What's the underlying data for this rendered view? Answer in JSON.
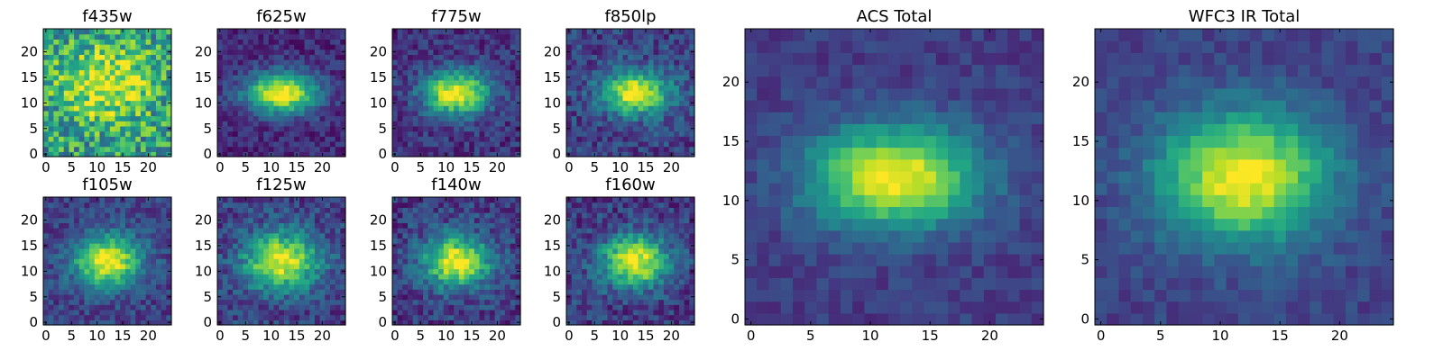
{
  "chart_data": [
    {
      "type": "heatmap",
      "title": "f435w",
      "xticks": [
        0,
        5,
        10,
        15,
        20
      ],
      "yticks": [
        0,
        5,
        10,
        15,
        20
      ],
      "xlim": [
        0,
        25
      ],
      "ylim": [
        0,
        25
      ],
      "grid": false,
      "colormap": "viridis",
      "peak": [
        12,
        14
      ],
      "spread": [
        6,
        5
      ],
      "noise": 0.55,
      "base": 0.55
    },
    {
      "type": "heatmap",
      "title": "f625w",
      "xticks": [
        0,
        5,
        10,
        15,
        20
      ],
      "yticks": [
        0,
        5,
        10,
        15,
        20
      ],
      "xlim": [
        0,
        25
      ],
      "ylim": [
        0,
        25
      ],
      "grid": false,
      "colormap": "viridis",
      "peak": [
        12,
        12
      ],
      "spread": [
        5,
        2.8
      ],
      "noise": 0.22,
      "base": 0.12
    },
    {
      "type": "heatmap",
      "title": "f775w",
      "xticks": [
        0,
        5,
        10,
        15,
        20
      ],
      "yticks": [
        0,
        5,
        10,
        15,
        20
      ],
      "xlim": [
        0,
        25
      ],
      "ylim": [
        0,
        25
      ],
      "grid": false,
      "colormap": "viridis",
      "peak": [
        12,
        12
      ],
      "spread": [
        4.5,
        3
      ],
      "noise": 0.25,
      "base": 0.15
    },
    {
      "type": "heatmap",
      "title": "f850lp",
      "xticks": [
        0,
        5,
        10,
        15,
        20
      ],
      "yticks": [
        0,
        5,
        10,
        15,
        20
      ],
      "xlim": [
        0,
        25
      ],
      "ylim": [
        0,
        25
      ],
      "grid": false,
      "colormap": "viridis",
      "peak": [
        13,
        12
      ],
      "spread": [
        4.5,
        3
      ],
      "noise": 0.3,
      "base": 0.2
    },
    {
      "type": "heatmap",
      "title": "f105w",
      "xticks": [
        0,
        5,
        10,
        15,
        20
      ],
      "yticks": [
        0,
        5,
        10,
        15,
        20
      ],
      "xlim": [
        0,
        25
      ],
      "ylim": [
        0,
        25
      ],
      "grid": false,
      "colormap": "viridis",
      "peak": [
        12,
        12
      ],
      "spread": [
        4.5,
        3.5
      ],
      "noise": 0.25,
      "base": 0.2
    },
    {
      "type": "heatmap",
      "title": "f125w",
      "xticks": [
        0,
        5,
        10,
        15,
        20
      ],
      "yticks": [
        0,
        5,
        10,
        15,
        20
      ],
      "xlim": [
        0,
        25
      ],
      "ylim": [
        0,
        25
      ],
      "grid": false,
      "colormap": "viridis",
      "peak": [
        12,
        12
      ],
      "spread": [
        5,
        3.8
      ],
      "noise": 0.3,
      "base": 0.2
    },
    {
      "type": "heatmap",
      "title": "f140w",
      "xticks": [
        0,
        5,
        10,
        15,
        20
      ],
      "yticks": [
        0,
        5,
        10,
        15,
        20
      ],
      "xlim": [
        0,
        25
      ],
      "ylim": [
        0,
        25
      ],
      "grid": false,
      "colormap": "viridis",
      "peak": [
        12,
        12
      ],
      "spread": [
        4.5,
        3.5
      ],
      "noise": 0.3,
      "base": 0.18
    },
    {
      "type": "heatmap",
      "title": "f160w",
      "xticks": [
        0,
        5,
        10,
        15,
        20
      ],
      "yticks": [
        0,
        5,
        10,
        15,
        20
      ],
      "xlim": [
        0,
        25
      ],
      "ylim": [
        0,
        25
      ],
      "grid": false,
      "colormap": "viridis",
      "peak": [
        13,
        12
      ],
      "spread": [
        4.5,
        3.5
      ],
      "noise": 0.3,
      "base": 0.18
    },
    {
      "type": "heatmap",
      "title": "ACS Total",
      "xticks": [
        0,
        5,
        10,
        15,
        20
      ],
      "yticks": [
        0,
        5,
        10,
        15,
        20
      ],
      "xlim": [
        0,
        25
      ],
      "ylim": [
        0,
        25
      ],
      "grid": false,
      "colormap": "viridis",
      "peak": [
        12,
        12
      ],
      "spread": [
        5,
        3
      ],
      "noise": 0.15,
      "base": 0.18
    },
    {
      "type": "heatmap",
      "title": "WFC3 IR Total",
      "xticks": [
        0,
        5,
        10,
        15,
        20
      ],
      "yticks": [
        0,
        5,
        10,
        15,
        20
      ],
      "xlim": [
        0,
        25
      ],
      "ylim": [
        0,
        25
      ],
      "grid": false,
      "colormap": "viridis",
      "peak": [
        12,
        12
      ],
      "spread": [
        5,
        3.8
      ],
      "noise": 0.15,
      "base": 0.2
    }
  ]
}
